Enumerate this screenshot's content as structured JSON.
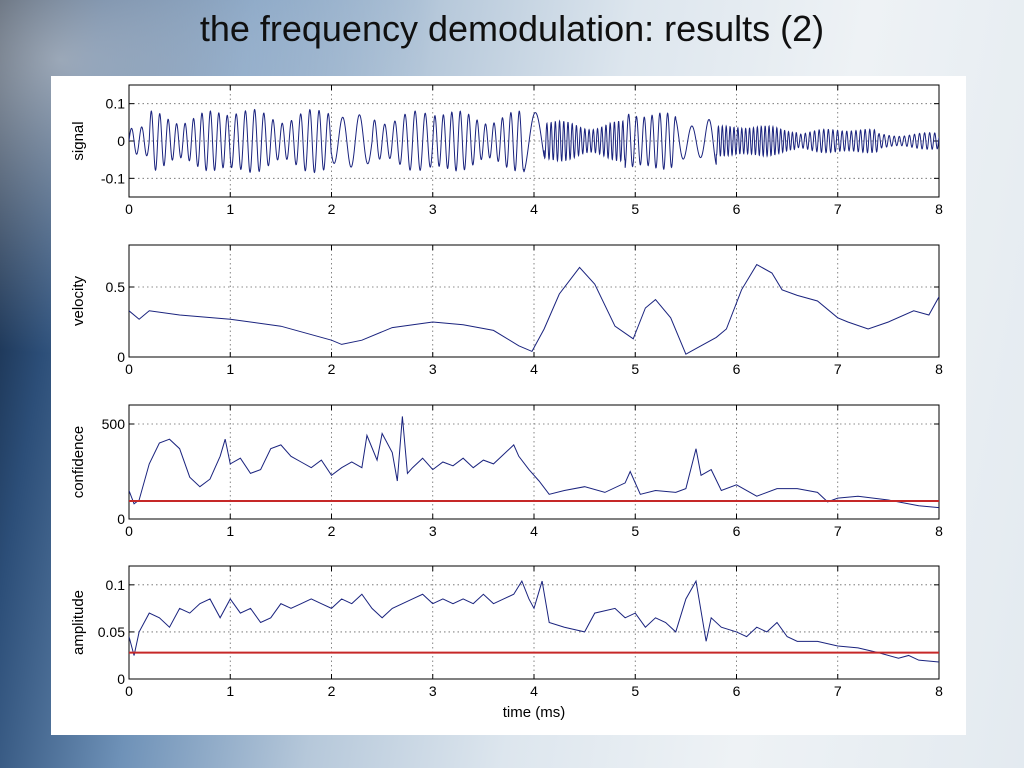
{
  "slide": {
    "title": "the frequency demodulation: results (2)"
  },
  "chart_data": [
    {
      "type": "line",
      "ylabel": "signal",
      "xlabel": "",
      "xlim": [
        0,
        8
      ],
      "ylim": [
        -0.15,
        0.15
      ],
      "x_ticks": [
        "0",
        "1",
        "2",
        "3",
        "4",
        "5",
        "6",
        "7",
        "8"
      ],
      "y_ticks": [
        {
          "value": 0.1,
          "label": "0.1"
        },
        {
          "value": 0,
          "label": "0"
        },
        {
          "value": -0.1,
          "label": "-0.1"
        }
      ],
      "grid": true,
      "series": [
        {
          "color": "#1a237e",
          "segments": [
            {
              "x0": 0.0,
              "x1": 0.2,
              "freq": 10,
              "amp": 0.045
            },
            {
              "x0": 0.2,
              "x1": 1.0,
              "freq": 12,
              "amp": 0.09
            },
            {
              "x0": 1.0,
              "x1": 2.0,
              "freq": 11,
              "amp": 0.095
            },
            {
              "x0": 2.0,
              "x1": 2.4,
              "freq": 6,
              "amp": 0.08
            },
            {
              "x0": 2.4,
              "x1": 3.0,
              "freq": 10,
              "amp": 0.09
            },
            {
              "x0": 3.0,
              "x1": 3.9,
              "freq": 12,
              "amp": 0.09
            },
            {
              "x0": 3.9,
              "x1": 4.1,
              "freq": 4,
              "amp": 0.1
            },
            {
              "x0": 4.1,
              "x1": 4.9,
              "freq": 24,
              "amp": 0.06
            },
            {
              "x0": 4.9,
              "x1": 5.4,
              "freq": 13,
              "amp": 0.085
            },
            {
              "x0": 5.4,
              "x1": 5.8,
              "freq": 6,
              "amp": 0.08
            },
            {
              "x0": 5.8,
              "x1": 6.6,
              "freq": 26,
              "amp": 0.045
            },
            {
              "x0": 6.6,
              "x1": 7.4,
              "freq": 22,
              "amp": 0.035
            },
            {
              "x0": 7.4,
              "x1": 8.0,
              "freq": 20,
              "amp": 0.025
            }
          ]
        }
      ]
    },
    {
      "type": "line",
      "ylabel": "velocity",
      "xlabel": "",
      "xlim": [
        0,
        8
      ],
      "ylim": [
        0,
        0.8
      ],
      "x_ticks": [
        "0",
        "1",
        "2",
        "3",
        "4",
        "5",
        "6",
        "7",
        "8"
      ],
      "y_ticks": [
        {
          "value": 0.5,
          "label": "0.5"
        },
        {
          "value": 0,
          "label": "0"
        }
      ],
      "grid": true,
      "series": [
        {
          "color": "#1a237e",
          "x": [
            0,
            0.1,
            0.2,
            0.5,
            1.0,
            1.5,
            2.0,
            2.1,
            2.3,
            2.6,
            3.0,
            3.3,
            3.6,
            3.85,
            3.98,
            4.1,
            4.25,
            4.45,
            4.6,
            4.8,
            4.98,
            5.1,
            5.2,
            5.35,
            5.5,
            5.6,
            5.8,
            5.9,
            6.05,
            6.2,
            6.35,
            6.45,
            6.6,
            6.8,
            7.0,
            7.1,
            7.3,
            7.5,
            7.75,
            7.9,
            8.0
          ],
          "y": [
            0.33,
            0.27,
            0.33,
            0.3,
            0.27,
            0.22,
            0.12,
            0.09,
            0.12,
            0.21,
            0.25,
            0.23,
            0.19,
            0.08,
            0.04,
            0.2,
            0.45,
            0.64,
            0.52,
            0.22,
            0.13,
            0.35,
            0.41,
            0.28,
            0.02,
            0.06,
            0.14,
            0.2,
            0.48,
            0.66,
            0.6,
            0.48,
            0.44,
            0.4,
            0.28,
            0.25,
            0.2,
            0.25,
            0.33,
            0.3,
            0.43
          ]
        }
      ]
    },
    {
      "type": "line",
      "ylabel": "confidence",
      "xlabel": "",
      "xlim": [
        0,
        8
      ],
      "ylim": [
        0,
        600
      ],
      "x_ticks": [
        "0",
        "1",
        "2",
        "3",
        "4",
        "5",
        "6",
        "7",
        "8"
      ],
      "y_ticks": [
        {
          "value": 500,
          "label": "500"
        },
        {
          "value": 0,
          "label": "0"
        }
      ],
      "grid": true,
      "series": [
        {
          "color": "#1a237e",
          "x": [
            0,
            0.05,
            0.1,
            0.2,
            0.3,
            0.4,
            0.5,
            0.6,
            0.7,
            0.8,
            0.9,
            0.95,
            1.0,
            1.1,
            1.2,
            1.3,
            1.4,
            1.5,
            1.6,
            1.7,
            1.8,
            1.9,
            2.0,
            2.1,
            2.2,
            2.3,
            2.35,
            2.45,
            2.5,
            2.6,
            2.65,
            2.7,
            2.75,
            2.8,
            2.9,
            3.0,
            3.1,
            3.2,
            3.3,
            3.4,
            3.5,
            3.6,
            3.7,
            3.8,
            3.85,
            3.95,
            4.05,
            4.15,
            4.3,
            4.5,
            4.7,
            4.9,
            4.95,
            5.05,
            5.2,
            5.4,
            5.5,
            5.6,
            5.65,
            5.75,
            5.85,
            6.0,
            6.2,
            6.4,
            6.6,
            6.8,
            6.9,
            7.0,
            7.2,
            7.5,
            7.8,
            8.0
          ],
          "y": [
            150,
            80,
            100,
            290,
            400,
            420,
            370,
            220,
            170,
            210,
            330,
            420,
            290,
            320,
            240,
            260,
            370,
            390,
            330,
            300,
            270,
            310,
            230,
            270,
            300,
            270,
            440,
            310,
            450,
            350,
            200,
            540,
            240,
            270,
            320,
            260,
            300,
            280,
            320,
            270,
            310,
            290,
            340,
            390,
            330,
            260,
            200,
            130,
            150,
            170,
            140,
            190,
            250,
            130,
            150,
            140,
            160,
            370,
            230,
            260,
            150,
            180,
            120,
            160,
            160,
            140,
            90,
            110,
            120,
            100,
            70,
            60
          ]
        },
        {
          "color": "#c62828",
          "x": [
            0,
            8
          ],
          "y": [
            95,
            95
          ]
        }
      ]
    },
    {
      "type": "line",
      "ylabel": "amplitude",
      "xlabel": "time (ms)",
      "xlim": [
        0,
        8
      ],
      "ylim": [
        0,
        0.12
      ],
      "x_ticks": [
        "0",
        "1",
        "2",
        "3",
        "4",
        "5",
        "6",
        "7",
        "8"
      ],
      "y_ticks": [
        {
          "value": 0.1,
          "label": "0.1"
        },
        {
          "value": 0.05,
          "label": "0.05"
        },
        {
          "value": 0,
          "label": "0"
        }
      ],
      "grid": true,
      "series": [
        {
          "color": "#1a237e",
          "x": [
            0,
            0.05,
            0.1,
            0.2,
            0.3,
            0.4,
            0.5,
            0.6,
            0.7,
            0.8,
            0.9,
            1.0,
            1.1,
            1.2,
            1.3,
            1.4,
            1.5,
            1.6,
            1.7,
            1.8,
            1.9,
            2.0,
            2.1,
            2.2,
            2.3,
            2.4,
            2.5,
            2.6,
            2.7,
            2.8,
            2.9,
            3.0,
            3.1,
            3.2,
            3.3,
            3.4,
            3.5,
            3.6,
            3.7,
            3.8,
            3.88,
            3.95,
            4.0,
            4.08,
            4.15,
            4.3,
            4.5,
            4.6,
            4.8,
            4.9,
            5.0,
            5.1,
            5.2,
            5.3,
            5.4,
            5.5,
            5.6,
            5.7,
            5.75,
            5.85,
            6.0,
            6.1,
            6.2,
            6.3,
            6.4,
            6.5,
            6.6,
            6.8,
            7.0,
            7.2,
            7.4,
            7.6,
            7.7,
            7.8,
            8.0
          ],
          "y": [
            0.045,
            0.025,
            0.05,
            0.07,
            0.065,
            0.055,
            0.075,
            0.07,
            0.08,
            0.085,
            0.065,
            0.085,
            0.07,
            0.075,
            0.06,
            0.065,
            0.08,
            0.075,
            0.08,
            0.085,
            0.08,
            0.075,
            0.085,
            0.08,
            0.09,
            0.075,
            0.065,
            0.075,
            0.08,
            0.085,
            0.09,
            0.08,
            0.085,
            0.08,
            0.085,
            0.08,
            0.09,
            0.08,
            0.085,
            0.09,
            0.104,
            0.085,
            0.075,
            0.104,
            0.06,
            0.055,
            0.05,
            0.07,
            0.075,
            0.065,
            0.07,
            0.055,
            0.065,
            0.06,
            0.05,
            0.085,
            0.104,
            0.04,
            0.065,
            0.055,
            0.05,
            0.045,
            0.055,
            0.05,
            0.06,
            0.045,
            0.04,
            0.04,
            0.035,
            0.033,
            0.028,
            0.022,
            0.025,
            0.02,
            0.018
          ]
        },
        {
          "color": "#c62828",
          "x": [
            0,
            8
          ],
          "y": [
            0.028,
            0.028
          ]
        }
      ]
    }
  ]
}
